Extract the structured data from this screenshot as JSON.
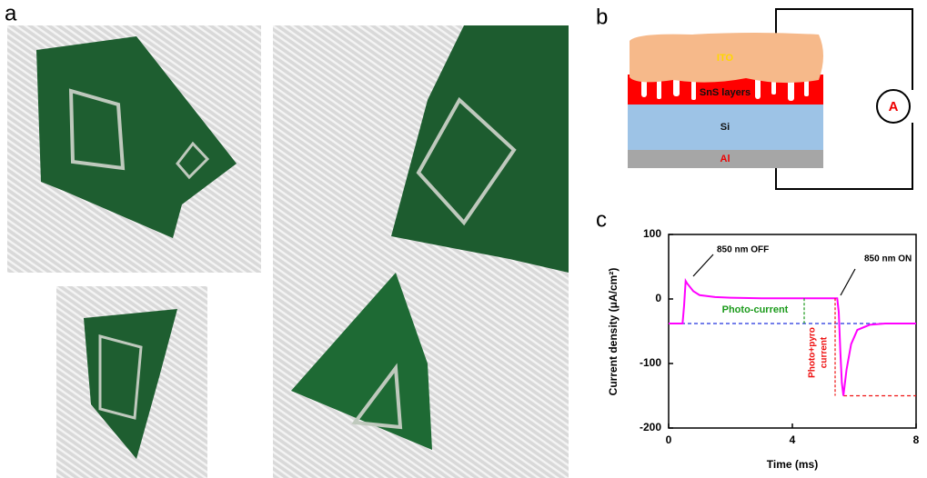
{
  "panel_labels": [
    "a",
    "b",
    "c"
  ],
  "schematic": {
    "layers": [
      "ITO",
      "SnS layers",
      "Si",
      "Al"
    ],
    "meter": "A"
  },
  "chart_data": {
    "type": "line",
    "xlabel": "Time (ms)",
    "ylabel": "Current density (μA/cm²)",
    "x": [
      0,
      0.45,
      0.5,
      0.55,
      0.6,
      0.8,
      1.0,
      1.5,
      2,
      3,
      4,
      5,
      5.45,
      5.5,
      5.55,
      5.6,
      5.65,
      5.75,
      5.9,
      6.1,
      6.5,
      7,
      8
    ],
    "series": [
      {
        "color": "#ff00ff",
        "values": [
          -38,
          -38,
          -10,
          28,
          24,
          12,
          6,
          3,
          2,
          1,
          1,
          1,
          1,
          -20,
          -80,
          -130,
          -150,
          -110,
          -70,
          -48,
          -40,
          -38,
          -38
        ]
      }
    ],
    "xlim": [
      0,
      8
    ],
    "xticks": [
      0,
      4,
      8
    ],
    "ylim": [
      -200,
      100
    ],
    "yticks": [
      100,
      0,
      -100,
      -200
    ],
    "reference_lines": [
      {
        "value": -38,
        "color": "#2233dd"
      },
      {
        "value": -150,
        "color": "#ee1111"
      }
    ],
    "annotations": [
      "850 nm OFF",
      "850 nm ON",
      "Photo-current",
      "Photo+pyro",
      "current"
    ]
  }
}
